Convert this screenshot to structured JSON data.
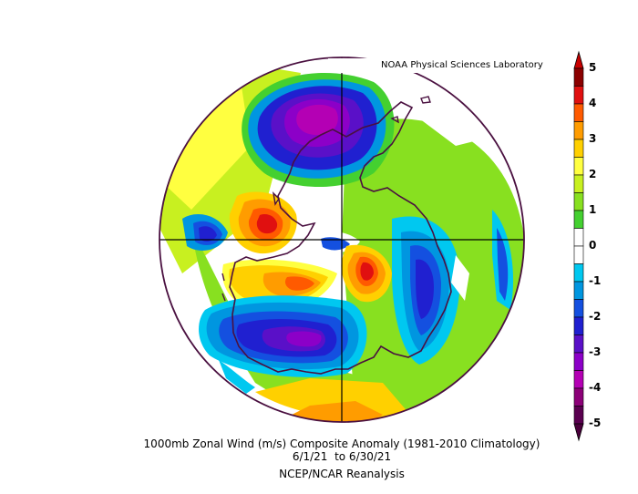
{
  "credit": "NOAA Physical Sciences Laboratory",
  "caption": {
    "line1": "1000mb Zonal Wind (m/s) Composite Anomaly (1981-2010 Climatology)",
    "line2": "6/1/21  to 6/30/21",
    "line3": "NCEP/NCAR Reanalysis"
  },
  "colorbar": {
    "labels": [
      "5",
      "4",
      "3",
      "2",
      "1",
      "0",
      "-1",
      "-2",
      "-3",
      "-4",
      "-5"
    ],
    "colors": [
      "#8b0000",
      "#e01010",
      "#ff5a00",
      "#ff9c00",
      "#ffd000",
      "#ffff40",
      "#c8f020",
      "#88e020",
      "#44d030",
      "#ffffff",
      "#ffffff",
      "#00c8f0",
      "#0096e0",
      "#1450e0",
      "#2020d0",
      "#5a10c8",
      "#8c00c8",
      "#b400b4",
      "#8c0078",
      "#5a0050"
    ],
    "up_arrow_color": "#c80000",
    "down_arrow_color": "#4a003c"
  }
}
